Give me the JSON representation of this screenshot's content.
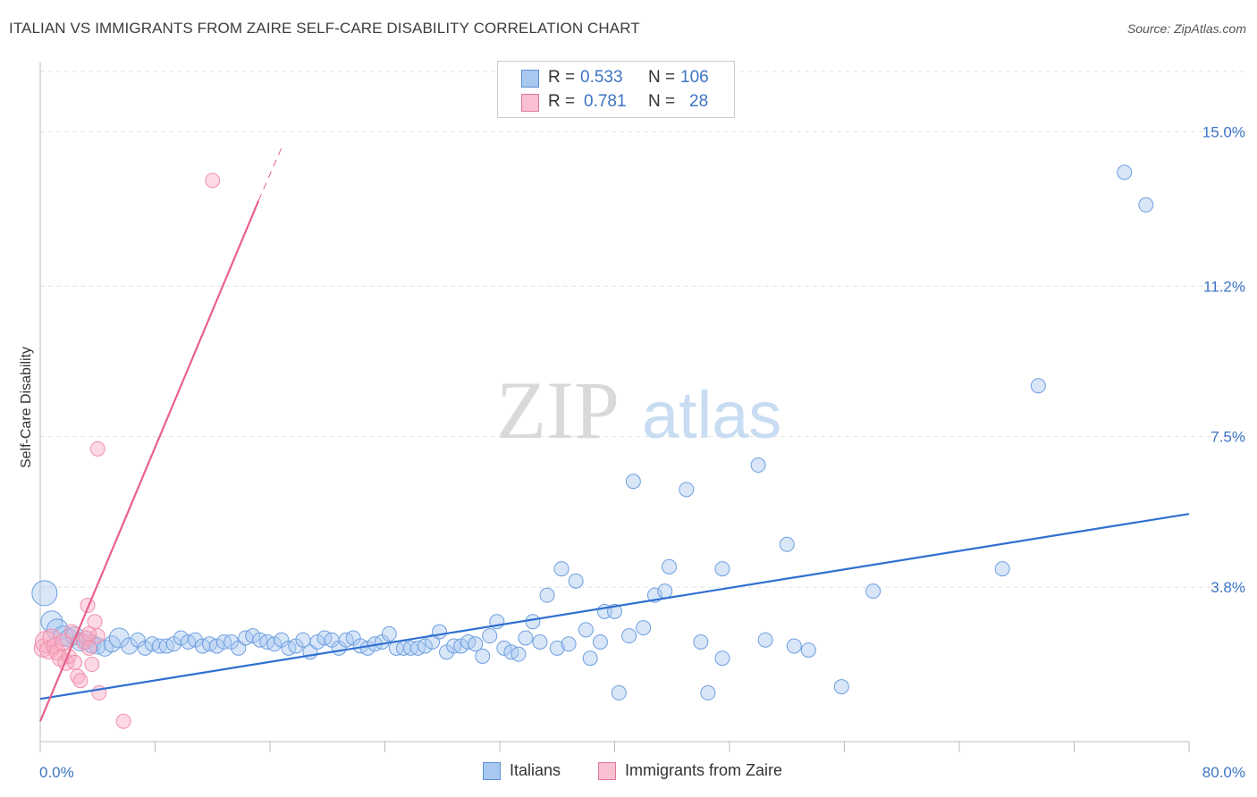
{
  "header": {
    "title": "ITALIAN VS IMMIGRANTS FROM ZAIRE SELF-CARE DISABILITY CORRELATION CHART",
    "source": "Source: ZipAtlas.com"
  },
  "watermark": {
    "zip": "ZIP",
    "atlas": "atlas"
  },
  "stats_legend": [
    {
      "r_label": "R =",
      "r_value": "0.533",
      "n_label": "N =",
      "n_value": "106",
      "color": "#a8c8f0",
      "border": "#5b8fd6"
    },
    {
      "r_label": "R =",
      "r_value": "0.781",
      "n_label": "N =",
      "n_value": "28",
      "color": "#f8c0d0",
      "border": "#e07898"
    }
  ],
  "series_legend": [
    {
      "name": "Italians",
      "color": "#a8c8f0",
      "border": "#5b8fd6"
    },
    {
      "name": "Immigrants from Zaire",
      "color": "#f8c0d0",
      "border": "#e07898"
    }
  ],
  "chart_data": {
    "type": "scatter",
    "title": "ITALIAN VS IMMIGRANTS FROM ZAIRE SELF-CARE DISABILITY CORRELATION CHART",
    "xlabel": "",
    "ylabel": "Self-Care Disability",
    "xlim": [
      0,
      80
    ],
    "ylim": [
      0,
      16.7
    ],
    "x_tick_labels": [
      "0.0%",
      "80.0%"
    ],
    "y_ticks": [
      3.8,
      7.5,
      11.2,
      15.0
    ],
    "y_tick_labels": [
      "3.8%",
      "7.5%",
      "11.2%",
      "15.0%"
    ],
    "grid": true,
    "legend_position": "top-center",
    "series": [
      {
        "name": "Italians",
        "color": "#6e9fe0",
        "trend_color": "#2f6fd0",
        "trend": {
          "x": [
            0,
            80
          ],
          "y": [
            1.05,
            5.6
          ]
        },
        "points": [
          [
            0.3,
            3.65,
            14
          ],
          [
            0.8,
            2.95,
            12
          ],
          [
            1.2,
            2.75,
            12
          ],
          [
            1.6,
            2.6,
            11
          ],
          [
            2.0,
            2.55,
            10
          ],
          [
            2.4,
            2.6,
            10
          ],
          [
            2.8,
            2.45,
            10
          ],
          [
            3.2,
            2.5,
            10
          ],
          [
            3.6,
            2.4,
            10
          ],
          [
            4.0,
            2.35,
            9
          ],
          [
            4.5,
            2.3,
            9
          ],
          [
            5.0,
            2.4,
            9
          ],
          [
            5.5,
            2.55,
            11
          ],
          [
            6.2,
            2.35,
            9
          ],
          [
            6.8,
            2.5,
            8
          ],
          [
            7.3,
            2.3,
            8
          ],
          [
            7.8,
            2.4,
            8
          ],
          [
            8.3,
            2.35,
            8
          ],
          [
            8.8,
            2.35,
            8
          ],
          [
            9.3,
            2.4,
            8
          ],
          [
            9.8,
            2.55,
            8
          ],
          [
            10.3,
            2.45,
            8
          ],
          [
            10.8,
            2.5,
            8
          ],
          [
            11.3,
            2.35,
            8
          ],
          [
            11.8,
            2.4,
            8
          ],
          [
            12.3,
            2.35,
            8
          ],
          [
            12.8,
            2.45,
            8
          ],
          [
            13.3,
            2.45,
            8
          ],
          [
            13.8,
            2.3,
            8
          ],
          [
            14.3,
            2.55,
            8
          ],
          [
            14.8,
            2.6,
            8
          ],
          [
            15.3,
            2.5,
            8
          ],
          [
            15.8,
            2.45,
            8
          ],
          [
            16.3,
            2.4,
            8
          ],
          [
            16.8,
            2.5,
            8
          ],
          [
            17.3,
            2.3,
            8
          ],
          [
            17.8,
            2.35,
            8
          ],
          [
            18.3,
            2.5,
            8
          ],
          [
            18.8,
            2.2,
            8
          ],
          [
            19.3,
            2.45,
            8
          ],
          [
            19.8,
            2.55,
            8
          ],
          [
            20.3,
            2.5,
            8
          ],
          [
            20.8,
            2.3,
            8
          ],
          [
            21.3,
            2.5,
            8
          ],
          [
            21.8,
            2.55,
            8
          ],
          [
            22.3,
            2.35,
            8
          ],
          [
            22.8,
            2.3,
            8
          ],
          [
            23.3,
            2.4,
            8
          ],
          [
            23.8,
            2.45,
            8
          ],
          [
            24.3,
            2.65,
            8
          ],
          [
            24.8,
            2.3,
            8
          ],
          [
            25.3,
            2.3,
            8
          ],
          [
            25.8,
            2.3,
            8
          ],
          [
            26.3,
            2.3,
            8
          ],
          [
            26.8,
            2.35,
            8
          ],
          [
            27.3,
            2.45,
            8
          ],
          [
            27.8,
            2.7,
            8
          ],
          [
            28.3,
            2.2,
            8
          ],
          [
            28.8,
            2.35,
            8
          ],
          [
            29.3,
            2.35,
            8
          ],
          [
            29.8,
            2.45,
            8
          ],
          [
            30.3,
            2.4,
            8
          ],
          [
            30.8,
            2.1,
            8
          ],
          [
            31.3,
            2.6,
            8
          ],
          [
            31.8,
            2.95,
            8
          ],
          [
            32.3,
            2.3,
            8
          ],
          [
            32.8,
            2.2,
            8
          ],
          [
            33.3,
            2.15,
            8
          ],
          [
            33.8,
            2.55,
            8
          ],
          [
            34.3,
            2.95,
            8
          ],
          [
            34.8,
            2.45,
            8
          ],
          [
            35.3,
            3.6,
            8
          ],
          [
            36.0,
            2.3,
            8
          ],
          [
            36.3,
            4.25,
            8
          ],
          [
            36.8,
            2.4,
            8
          ],
          [
            37.3,
            3.95,
            8
          ],
          [
            38.0,
            2.75,
            8
          ],
          [
            38.3,
            2.05,
            8
          ],
          [
            39.0,
            2.45,
            8
          ],
          [
            39.3,
            3.2,
            8
          ],
          [
            40.0,
            3.2,
            8
          ],
          [
            40.3,
            1.2,
            8
          ],
          [
            41.0,
            2.6,
            8
          ],
          [
            41.3,
            6.4,
            8
          ],
          [
            42.0,
            2.8,
            8
          ],
          [
            42.8,
            3.6,
            8
          ],
          [
            43.5,
            3.7,
            8
          ],
          [
            43.8,
            4.3,
            8
          ],
          [
            45.0,
            6.2,
            8
          ],
          [
            46.0,
            2.45,
            8
          ],
          [
            46.5,
            1.2,
            8
          ],
          [
            47.5,
            2.05,
            8
          ],
          [
            47.5,
            4.25,
            8
          ],
          [
            50.0,
            6.8,
            8
          ],
          [
            50.5,
            2.5,
            8
          ],
          [
            52.0,
            4.85,
            8
          ],
          [
            52.5,
            2.35,
            8
          ],
          [
            53.5,
            2.25,
            8
          ],
          [
            55.8,
            1.35,
            8
          ],
          [
            58.0,
            3.7,
            8
          ],
          [
            67.0,
            4.25,
            8
          ],
          [
            69.5,
            8.75,
            8
          ],
          [
            75.5,
            14.0,
            8
          ],
          [
            77.0,
            13.2,
            8
          ]
        ]
      },
      {
        "name": "Immigrants from Zaire",
        "color": "#f090ac",
        "trend_color": "#e8608c",
        "trend": {
          "x": [
            0,
            15.2
          ],
          "y": [
            0.5,
            13.3
          ]
        },
        "trend_dashed": {
          "x": [
            15.2,
            16.8
          ],
          "y": [
            13.3,
            14.6
          ]
        },
        "points": [
          [
            0.2,
            2.3,
            10
          ],
          [
            0.4,
            2.45,
            12
          ],
          [
            0.6,
            2.25,
            10
          ],
          [
            0.8,
            2.55,
            10
          ],
          [
            1.0,
            2.35,
            9
          ],
          [
            1.2,
            2.2,
            9
          ],
          [
            1.4,
            2.05,
            9
          ],
          [
            1.6,
            2.45,
            9
          ],
          [
            1.8,
            1.95,
            9
          ],
          [
            2.0,
            2.1,
            8
          ],
          [
            2.2,
            2.7,
            8
          ],
          [
            2.4,
            1.95,
            8
          ],
          [
            2.6,
            1.6,
            8
          ],
          [
            2.8,
            1.5,
            8
          ],
          [
            3.0,
            2.45,
            8
          ],
          [
            3.2,
            2.55,
            8
          ],
          [
            3.4,
            2.3,
            8
          ],
          [
            3.6,
            1.9,
            8
          ],
          [
            3.8,
            2.95,
            8
          ],
          [
            4.0,
            2.6,
            8
          ],
          [
            3.3,
            3.35,
            8
          ],
          [
            3.4,
            2.65,
            8
          ],
          [
            4.1,
            1.2,
            8
          ],
          [
            5.8,
            0.5,
            8
          ],
          [
            4.0,
            7.2,
            8
          ],
          [
            12.0,
            13.8,
            8
          ]
        ]
      }
    ]
  }
}
